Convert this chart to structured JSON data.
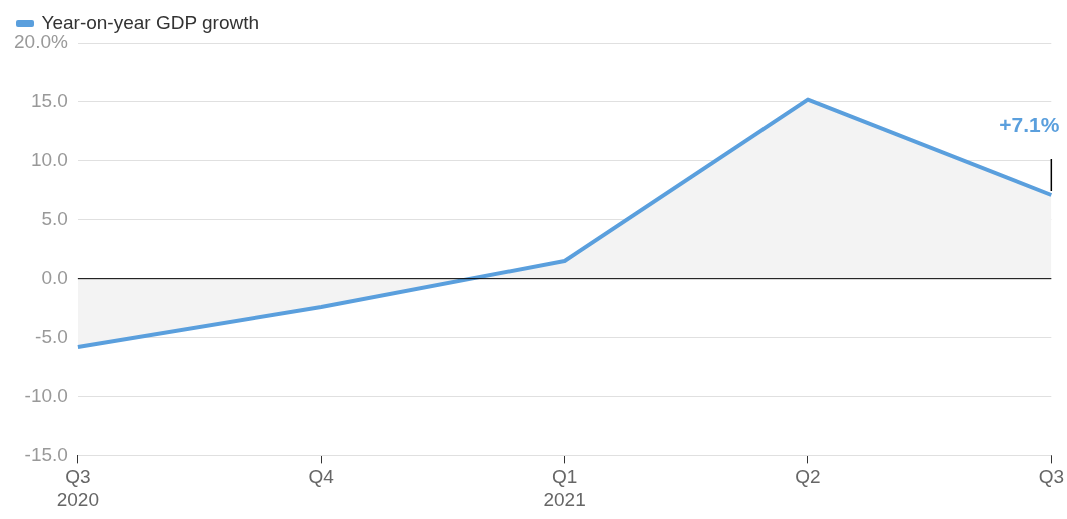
{
  "chart_data": {
    "type": "area",
    "categories": [
      "Q3 2020",
      "Q4",
      "Q1 2021",
      "Q2",
      "Q3"
    ],
    "series": [
      {
        "name": "Year-on-year GDP growth",
        "color": "#5a9fdd",
        "values": [
          -5.8,
          -2.4,
          1.5,
          15.2,
          7.1
        ]
      }
    ],
    "ylim": [
      -15,
      20
    ],
    "yticks": [
      {
        "value": -15,
        "label": "-15.0"
      },
      {
        "value": -10,
        "label": "-10.0"
      },
      {
        "value": -5,
        "label": "-5.0"
      },
      {
        "value": 0,
        "label": "0.0"
      },
      {
        "value": 5,
        "label": "5.0"
      },
      {
        "value": 10,
        "label": "10.0"
      },
      {
        "value": 15,
        "label": "15.0"
      },
      {
        "value": 20,
        "label": "20.0%"
      }
    ],
    "grid": "y",
    "legend": "top left",
    "annotations": [
      {
        "text": "+7.1%",
        "x": "Q3",
        "y": 7.1
      }
    ]
  }
}
